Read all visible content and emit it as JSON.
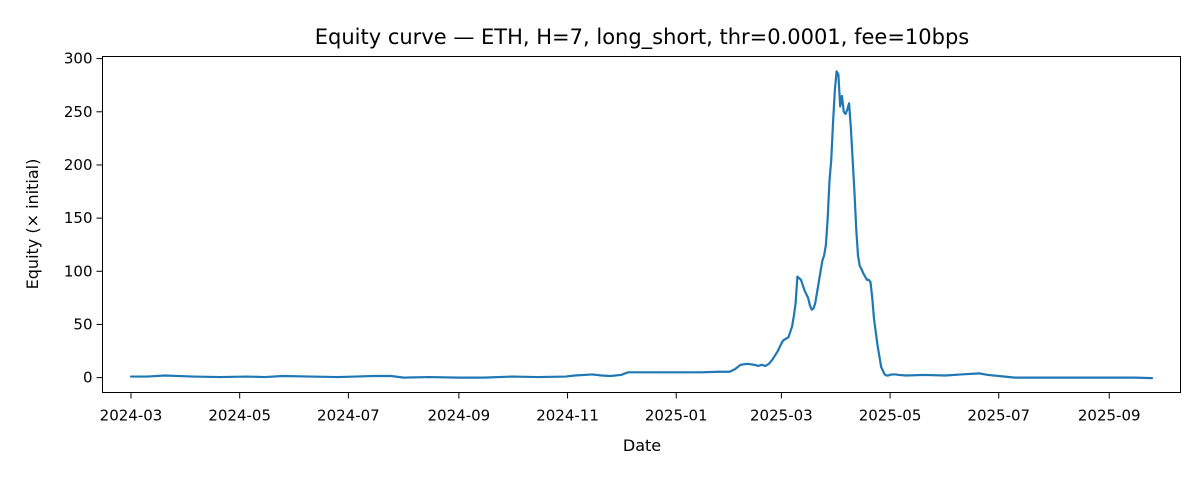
{
  "chart_data": {
    "type": "line",
    "title": "Equity curve — ETH, H=7, long_short, thr=0.0001, fee=10bps",
    "xlabel": "Date",
    "ylabel": "Equity (× initial)",
    "xlim": [
      "2024-02-14",
      "2025-10-11"
    ],
    "ylim": [
      -14,
      302
    ],
    "x_ticks": [
      "2024-03",
      "2024-05",
      "2024-07",
      "2024-09",
      "2024-11",
      "2025-01",
      "2025-03",
      "2025-05",
      "2025-07",
      "2025-09"
    ],
    "y_ticks": [
      0,
      50,
      100,
      150,
      200,
      250,
      300
    ],
    "grid": false,
    "line_color": "#1f77b4",
    "series": [
      {
        "x": [
          "2024-03-01",
          "2024-03-10",
          "2024-03-20",
          "2024-04-05",
          "2024-04-20",
          "2024-05-05",
          "2024-05-15",
          "2024-05-25",
          "2024-06-10",
          "2024-06-25",
          "2024-07-05",
          "2024-07-15",
          "2024-07-25",
          "2024-08-01",
          "2024-08-15",
          "2024-09-01",
          "2024-09-15",
          "2024-10-01",
          "2024-10-15",
          "2024-10-31",
          "2024-11-05",
          "2024-11-15",
          "2024-11-20",
          "2024-11-25",
          "2024-12-01",
          "2024-12-05",
          "2024-12-15",
          "2025-01-01",
          "2025-01-15",
          "2025-01-25",
          "2025-01-31",
          "2025-02-03",
          "2025-02-06",
          "2025-02-10",
          "2025-02-14",
          "2025-02-16",
          "2025-02-18",
          "2025-02-20",
          "2025-02-22",
          "2025-02-24",
          "2025-02-27",
          "2025-03-01",
          "2025-03-02",
          "2025-03-05",
          "2025-03-07",
          "2025-03-08",
          "2025-03-09",
          "2025-03-10",
          "2025-03-12",
          "2025-03-14",
          "2025-03-16",
          "2025-03-17",
          "2025-03-18",
          "2025-03-19",
          "2025-03-20",
          "2025-03-22",
          "2025-03-24",
          "2025-03-25",
          "2025-03-26",
          "2025-03-27",
          "2025-03-28",
          "2025-03-29",
          "2025-03-30",
          "2025-03-31",
          "2025-04-01",
          "2025-04-02",
          "2025-04-03",
          "2025-04-04",
          "2025-04-05",
          "2025-04-06",
          "2025-04-07",
          "2025-04-08",
          "2025-04-09",
          "2025-04-10",
          "2025-04-11",
          "2025-04-12",
          "2025-04-13",
          "2025-04-14",
          "2025-04-15",
          "2025-04-16",
          "2025-04-17",
          "2025-04-18",
          "2025-04-19",
          "2025-04-20",
          "2025-04-21",
          "2025-04-22",
          "2025-04-24",
          "2025-04-26",
          "2025-04-28",
          "2025-04-29",
          "2025-04-30",
          "2025-05-01",
          "2025-05-02",
          "2025-05-03",
          "2025-05-04",
          "2025-05-06",
          "2025-05-10",
          "2025-05-20",
          "2025-06-01",
          "2025-06-10",
          "2025-06-20",
          "2025-06-25",
          "2025-07-01",
          "2025-07-10",
          "2025-07-25",
          "2025-08-15",
          "2025-09-01",
          "2025-09-15",
          "2025-09-25"
        ],
        "values": [
          1,
          1,
          2,
          1,
          0.5,
          1,
          0.5,
          1.5,
          1,
          0.5,
          1,
          1.5,
          1.5,
          0,
          0.5,
          0,
          0,
          1,
          0.5,
          1,
          2,
          3,
          2,
          1.5,
          2.5,
          5,
          5,
          5,
          5,
          5.5,
          5.5,
          8,
          12,
          13,
          12,
          11,
          12,
          11,
          13,
          17,
          25,
          32,
          35,
          38,
          48,
          58,
          70,
          95,
          92,
          82,
          75,
          68,
          64,
          65,
          70,
          90,
          110,
          115,
          125,
          150,
          185,
          205,
          240,
          270,
          288,
          285,
          255,
          265,
          250,
          248,
          252,
          258,
          235,
          205,
          175,
          140,
          115,
          105,
          102,
          98,
          95,
          92,
          92,
          90,
          75,
          55,
          30,
          10,
          3,
          2,
          2,
          2.5,
          3,
          3,
          3,
          2.5,
          2,
          2.5,
          2,
          3,
          4,
          2.5,
          1.5,
          0,
          0,
          0,
          0,
          0,
          -0.5
        ]
      }
    ]
  }
}
